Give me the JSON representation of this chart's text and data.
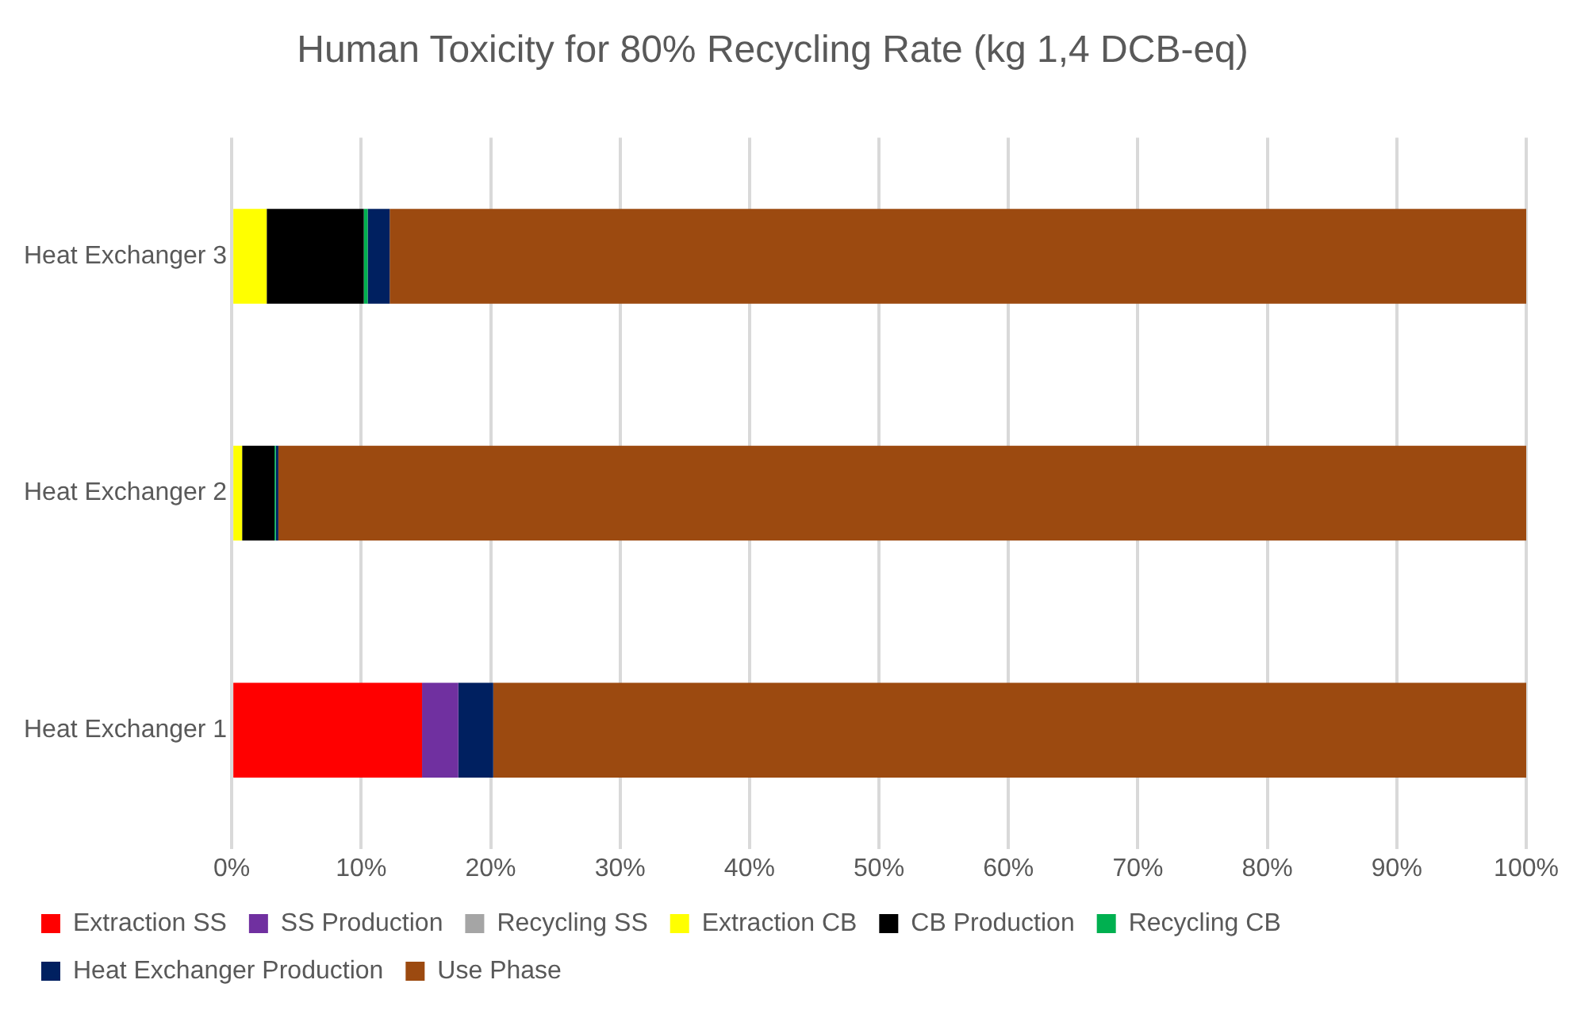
{
  "chart_data": {
    "type": "bar",
    "orientation": "horizontal",
    "stacked": true,
    "title": "Human Toxicity for 80% Recycling Rate (kg 1,4 DCB-eq)",
    "categories": [
      "Heat Exchanger 3",
      "Heat Exchanger 2",
      "Heat Exchanger 1"
    ],
    "series": [
      {
        "name": "Extraction SS",
        "color": "#ff0000",
        "values": [
          0,
          0,
          14.7
        ]
      },
      {
        "name": "SS Production",
        "color": "#7030a0",
        "values": [
          0,
          0,
          2.8
        ]
      },
      {
        "name": "Recycling SS",
        "color": "#a5a5a5",
        "values": [
          0,
          0,
          0
        ]
      },
      {
        "name": "Extraction CB",
        "color": "#ffff00",
        "values": [
          2.7,
          0.8,
          0
        ]
      },
      {
        "name": "CB Production",
        "color": "#000000",
        "values": [
          7.5,
          2.5,
          0
        ]
      },
      {
        "name": "Recycling CB",
        "color": "#00b050",
        "values": [
          0.3,
          0.1,
          0
        ]
      },
      {
        "name": "Heat Exchanger Production",
        "color": "#002060",
        "values": [
          1.7,
          0.2,
          2.7
        ]
      },
      {
        "name": "Use Phase",
        "color": "#9c4a10",
        "values": [
          87.8,
          96.4,
          79.8
        ]
      }
    ],
    "xlim": [
      0,
      100
    ],
    "xticks": [
      {
        "value": 0,
        "label": "0%"
      },
      {
        "value": 10,
        "label": "10%"
      },
      {
        "value": 20,
        "label": "20%"
      },
      {
        "value": 30,
        "label": "30%"
      },
      {
        "value": 40,
        "label": "40%"
      },
      {
        "value": 50,
        "label": "50%"
      },
      {
        "value": 60,
        "label": "60%"
      },
      {
        "value": 70,
        "label": "70%"
      },
      {
        "value": 80,
        "label": "80%"
      },
      {
        "value": 90,
        "label": "90%"
      },
      {
        "value": 100,
        "label": "100%"
      }
    ],
    "grid": "x",
    "legend": "bottom"
  }
}
